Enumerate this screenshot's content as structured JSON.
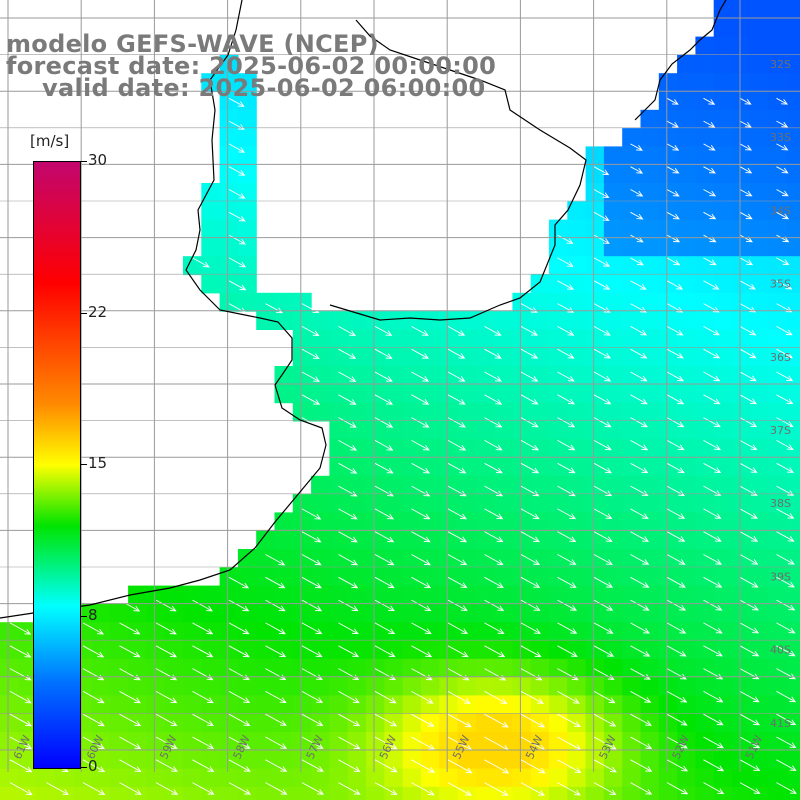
{
  "header": {
    "model_line": "modelo GEFS-WAVE (NCEP)",
    "forecast_line": "forecast date: 2025-06-02 00:00:00",
    "valid_line": "valid date: 2025-06-02 06:00:00"
  },
  "legend": {
    "unit": "[m/s]",
    "ticks": [
      "30",
      "22",
      "15",
      "8",
      "0"
    ],
    "colors": [
      "#0000ff",
      "#0070ff",
      "#00ffff",
      "#00e400",
      "#ffff00",
      "#ff8a00",
      "#ff0000",
      "#c2066e"
    ]
  },
  "map": {
    "lat_labels": [
      "32S",
      "33S",
      "34S",
      "35S",
      "36S",
      "37S",
      "38S",
      "39S",
      "40S",
      "41S"
    ],
    "lon_labels": [
      "61W",
      "60W",
      "59W",
      "58W",
      "57W",
      "56W",
      "55W",
      "54W",
      "53W",
      "52W",
      "51W"
    ],
    "land_color": "#ffffff",
    "grid_color": "#9a9a9a",
    "coast_color": "#000000"
  }
}
